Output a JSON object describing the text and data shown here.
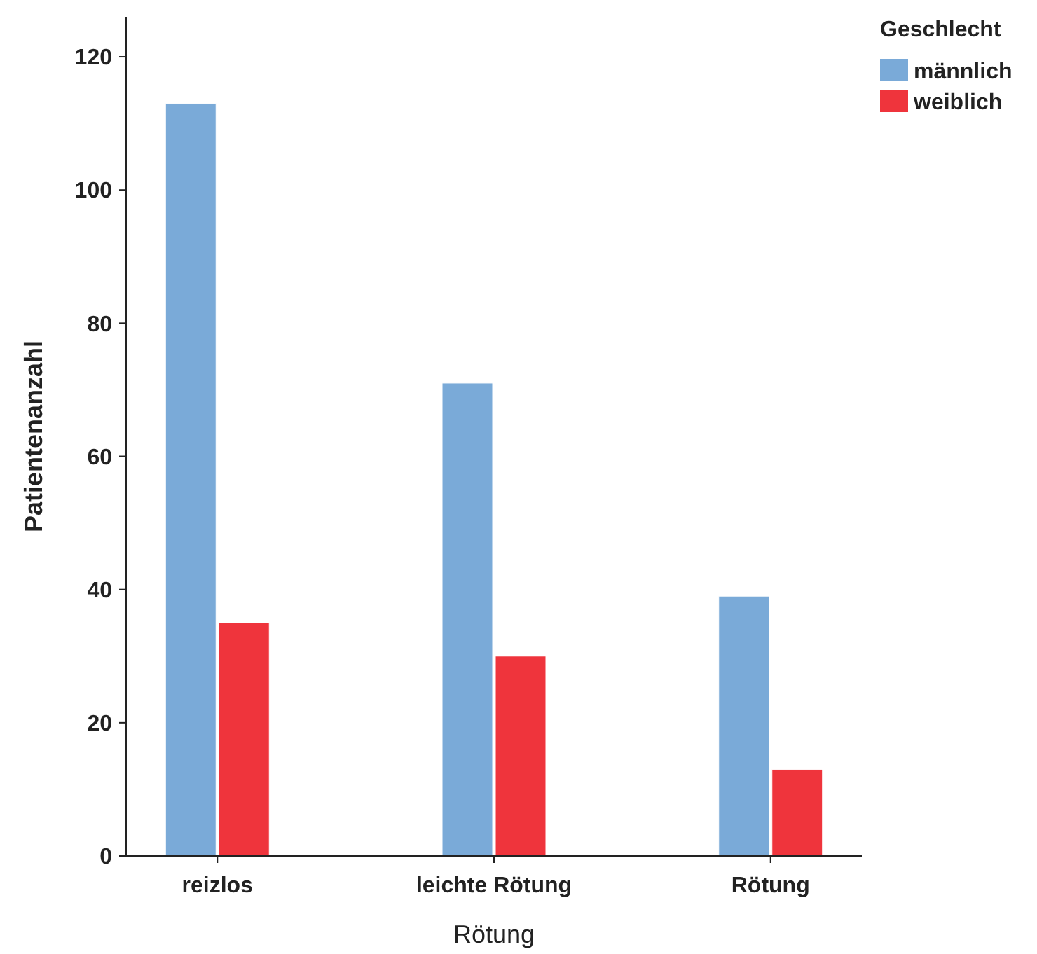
{
  "chart_data": {
    "type": "bar",
    "xlabel": "Rötung",
    "ylabel": "Patientenanzahl",
    "legend_title": "Geschlecht",
    "categories": [
      "reizlos",
      "leichte Rötung",
      "Rötung"
    ],
    "series": [
      {
        "name": "männlich",
        "color": "#7aaad8",
        "values": [
          113,
          71,
          39
        ]
      },
      {
        "name": "weiblich",
        "color": "#ef343c",
        "values": [
          35,
          30,
          13
        ]
      }
    ],
    "ylim": [
      0,
      126
    ],
    "yticks": [
      0,
      20,
      40,
      60,
      80,
      100,
      120
    ],
    "grid": false,
    "legend": "top right"
  }
}
